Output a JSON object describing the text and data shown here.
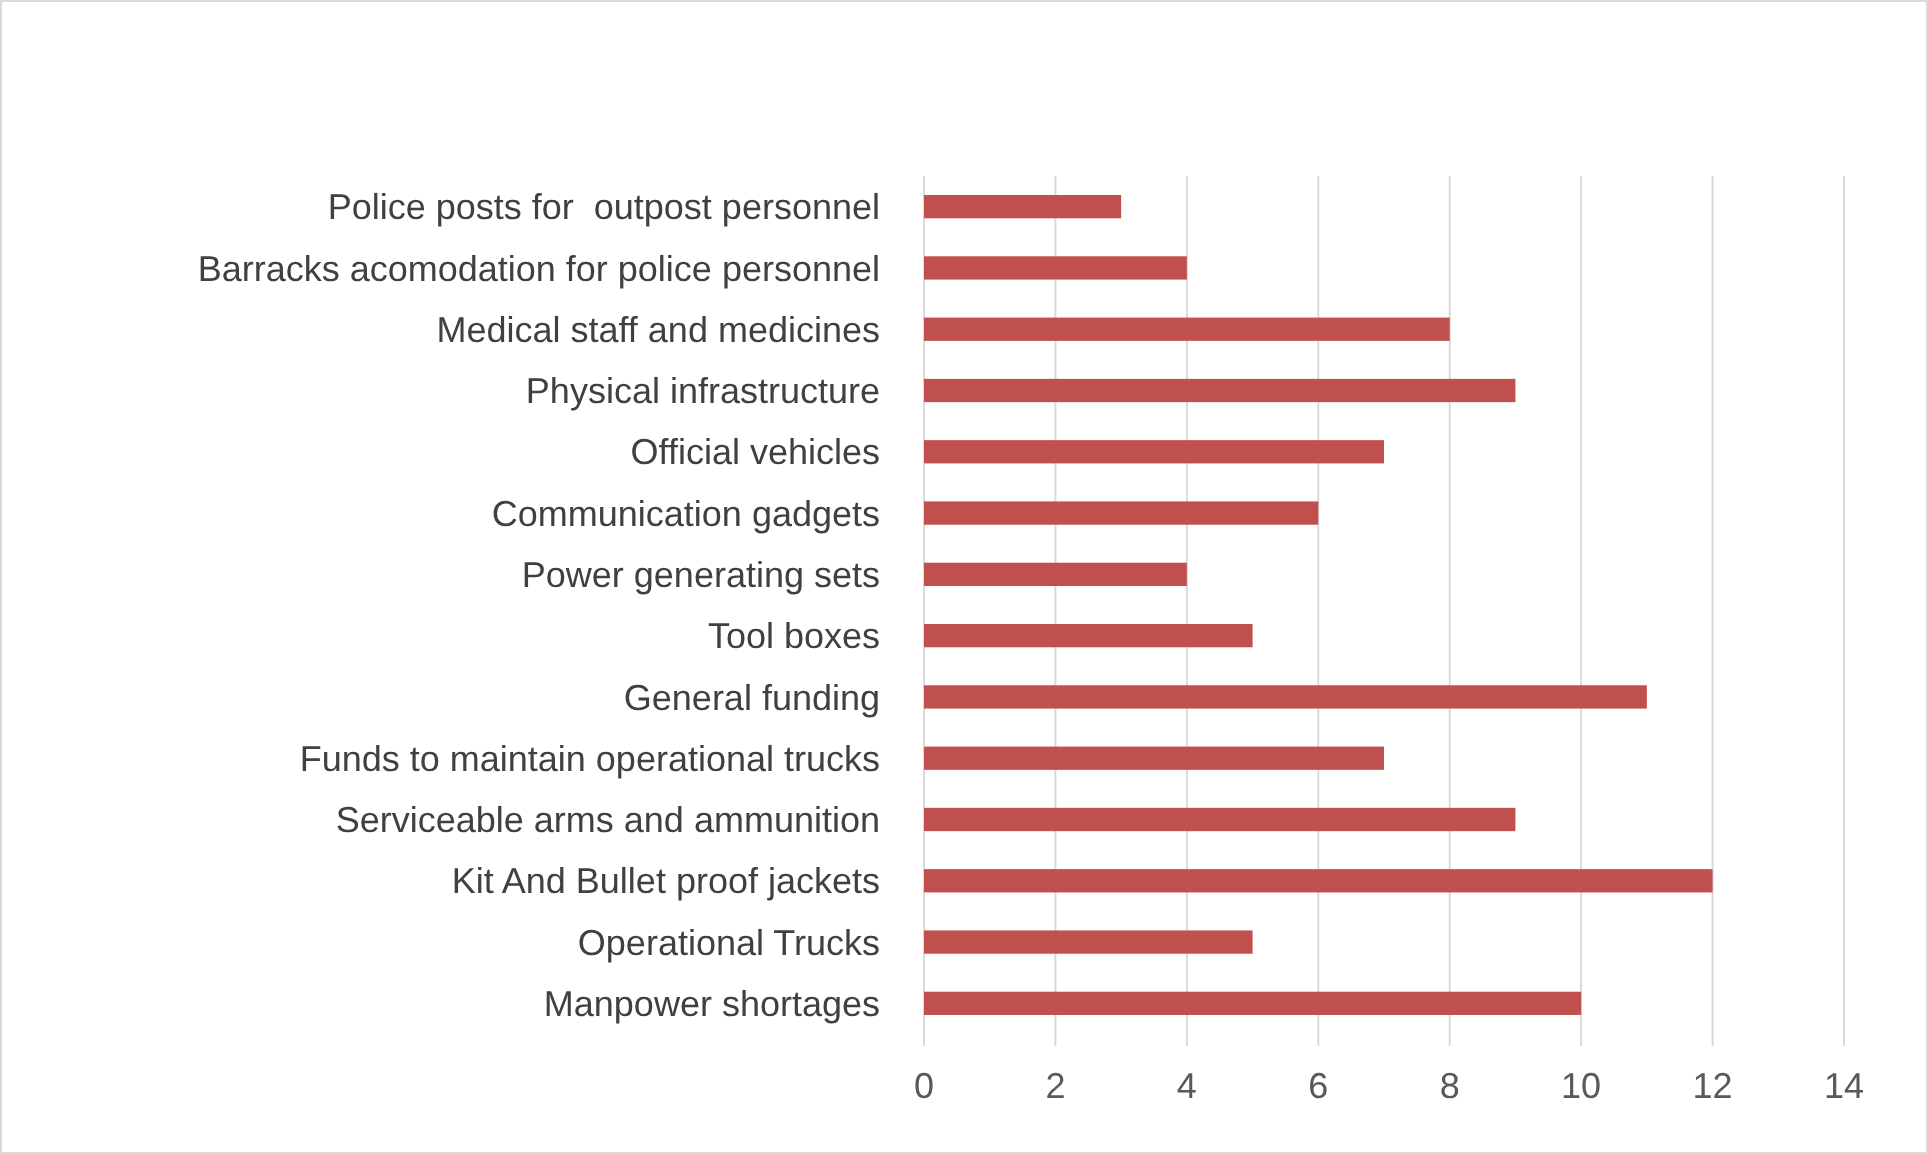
{
  "chart_data": {
    "type": "bar",
    "orientation": "horizontal",
    "categories": [
      "Police posts for  outpost personnel",
      "Barracks acomodation for police personnel",
      "Medical staff and medicines",
      "Physical infrastructure",
      "Official vehicles",
      "Communication gadgets",
      "Power generating sets",
      "Tool boxes",
      "General funding",
      "Funds to maintain operational trucks",
      "Serviceable arms and ammunition",
      "Kit And Bullet proof jackets",
      "Operational Trucks",
      "Manpower shortages"
    ],
    "values": [
      3,
      4,
      8,
      9,
      7,
      6,
      4,
      5,
      11,
      7,
      9,
      12,
      5,
      10
    ],
    "color": "#c0504d",
    "xlim": [
      0,
      14
    ],
    "xticks": [
      0,
      2,
      4,
      6,
      8,
      10,
      12,
      14
    ],
    "grid": "x"
  }
}
